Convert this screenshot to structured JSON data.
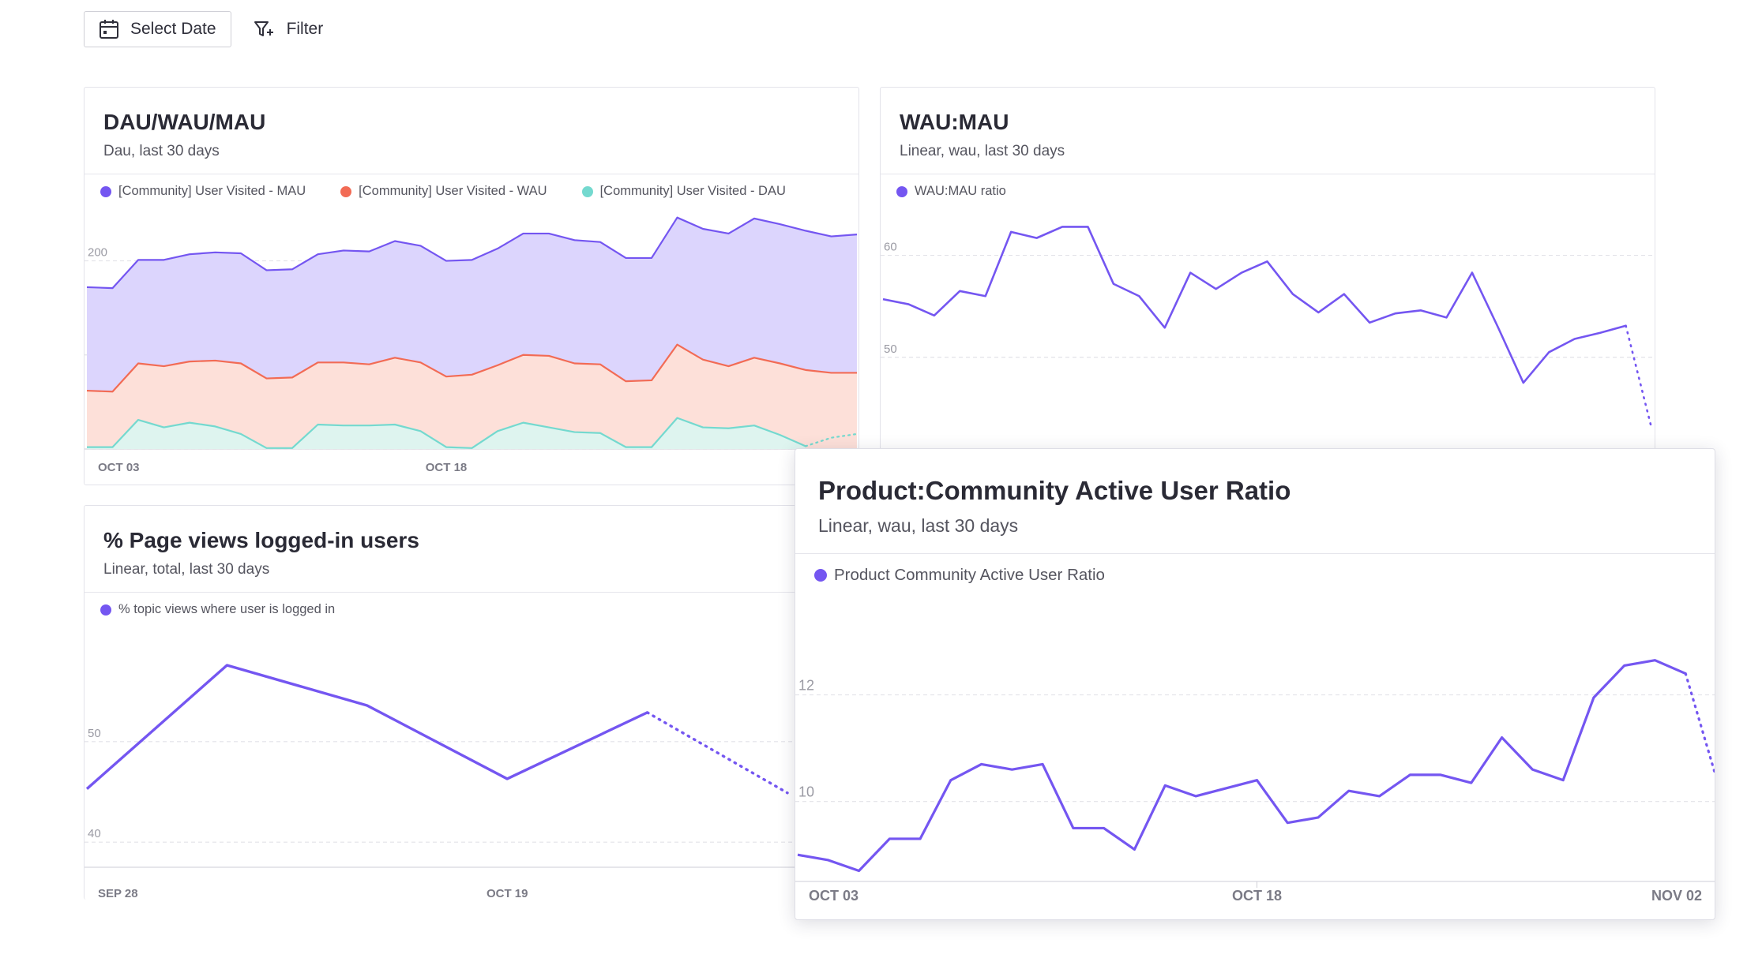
{
  "toolbar": {
    "select_date_label": "Select Date",
    "filter_label": "Filter"
  },
  "colors": {
    "purple": "#7456f1",
    "purple_fill": "#dcd5fd",
    "orange": "#f26b55",
    "orange_fill": "#fde0d9",
    "teal": "#74d9cf",
    "teal_fill": "#def4ef",
    "grid": "#e2e2e8",
    "axis_text": "#9a9aa3"
  },
  "cards": {
    "dau": {
      "title": "DAU/WAU/MAU",
      "subtitle": "Dau, last 30 days",
      "legend": [
        "[Community] User Visited - MAU",
        "[Community] User Visited - WAU",
        "[Community] User Visited - DAU"
      ]
    },
    "waumau": {
      "title": "WAU:MAU",
      "subtitle": "Linear, wau, last 30 days",
      "legend": [
        "WAU:MAU ratio"
      ]
    },
    "pageviews": {
      "title": "% Page views logged-in users",
      "subtitle": "Linear, total, last 30 days",
      "legend": [
        "% topic views where user is logged in"
      ]
    },
    "product": {
      "title": "Product:Community Active User Ratio",
      "subtitle": "Linear, wau, last 30 days",
      "legend": [
        "Product Community Active User Ratio"
      ]
    }
  },
  "chart_data": [
    {
      "type": "area",
      "title": "DAU/WAU/MAU",
      "ylim": [
        0,
        260
      ],
      "yticks": [
        0,
        100,
        200
      ],
      "xtick_labels": [
        [
          "OCT 03",
          0
        ],
        [
          "OCT 18",
          14
        ]
      ],
      "grid": true,
      "legend_placement": "top-left",
      "series": [
        {
          "name": "[Community] User Visited - MAU",
          "values": [
            172,
            171,
            201,
            201,
            207,
            209,
            208,
            190,
            191,
            207,
            211,
            210,
            221,
            216,
            200,
            201,
            213,
            229,
            229,
            222,
            220,
            203,
            203,
            246,
            234,
            229,
            245,
            239,
            232,
            226,
            228
          ]
        },
        {
          "name": "[Community] User Visited - WAU",
          "values": [
            62,
            61,
            91,
            88,
            93,
            94,
            91,
            75,
            76,
            92,
            92,
            90,
            97,
            92,
            77,
            79,
            89,
            100,
            99,
            91,
            90,
            72,
            73,
            111,
            95,
            88,
            97,
            91,
            84,
            81,
            81
          ]
        },
        {
          "name": "[Community] User Visited - DAU",
          "values": [
            2,
            2,
            31,
            23,
            28,
            24,
            16,
            1,
            1,
            26,
            25,
            25,
            26,
            19,
            2,
            1,
            19,
            28,
            23,
            18,
            17,
            2,
            2,
            33,
            23,
            22,
            25,
            15,
            3,
            12,
            16
          ]
        }
      ],
      "projected_tail": {
        "series": "[Community] User Visited - DAU",
        "values": [
          12,
          16
        ]
      }
    },
    {
      "type": "line",
      "title": "WAU:MAU",
      "ylim": [
        41,
        65
      ],
      "yticks": [
        50,
        60
      ],
      "grid": true,
      "legend_placement": "top-left",
      "series": [
        {
          "name": "WAU:MAU ratio",
          "values": [
            55.7,
            55.2,
            54.1,
            56.5,
            56.0,
            62.3,
            61.7,
            62.8,
            62.8,
            57.2,
            56.0,
            52.9,
            58.3,
            56.7,
            58.3,
            59.4,
            56.2,
            54.4,
            56.2,
            53.4,
            54.3,
            54.6,
            53.9,
            58.3,
            53.0,
            47.5,
            50.5,
            51.8,
            52.4,
            53.1,
            43.1
          ]
        }
      ],
      "projected_tail": {
        "series": "WAU:MAU ratio",
        "values": [
          53.1,
          43.1
        ]
      }
    },
    {
      "type": "line",
      "title": "% Page views logged-in users",
      "xtick_labels": [
        [
          "SEP 28",
          0
        ],
        [
          "OCT 19",
          3
        ]
      ],
      "ylim": [
        37.5,
        62
      ],
      "yticks": [
        40,
        50
      ],
      "grid": true,
      "legend_placement": "top-left",
      "series": [
        {
          "name": "% topic views where user is logged in",
          "values": [
            45.3,
            57.6,
            53.6,
            46.3,
            52.9,
            44.9
          ]
        }
      ],
      "projected_tail": {
        "series": "% topic views where user is logged in",
        "values": [
          52.9,
          44.9
        ]
      }
    },
    {
      "type": "line",
      "title": "Product:Community Active User Ratio",
      "xtick_labels": [
        [
          "OCT 03",
          0
        ],
        [
          "OCT 18",
          15
        ],
        [
          "NOV 02",
          30
        ]
      ],
      "ylim": [
        8.5,
        13.8
      ],
      "yticks": [
        10,
        12
      ],
      "grid": true,
      "legend_placement": "top-left",
      "series": [
        {
          "name": "Product Community Active User Ratio",
          "values": [
            9.0,
            8.9,
            8.7,
            9.3,
            9.3,
            10.4,
            10.7,
            10.6,
            10.7,
            9.5,
            9.5,
            9.1,
            10.3,
            10.1,
            10.25,
            10.4,
            9.6,
            9.7,
            10.2,
            10.1,
            10.5,
            10.5,
            10.35,
            11.2,
            10.6,
            10.4,
            11.95,
            12.55,
            12.65,
            12.4,
            10.45
          ]
        }
      ],
      "projected_tail": {
        "series": "Product Community Active User Ratio",
        "values": [
          12.4,
          10.45
        ]
      }
    }
  ]
}
